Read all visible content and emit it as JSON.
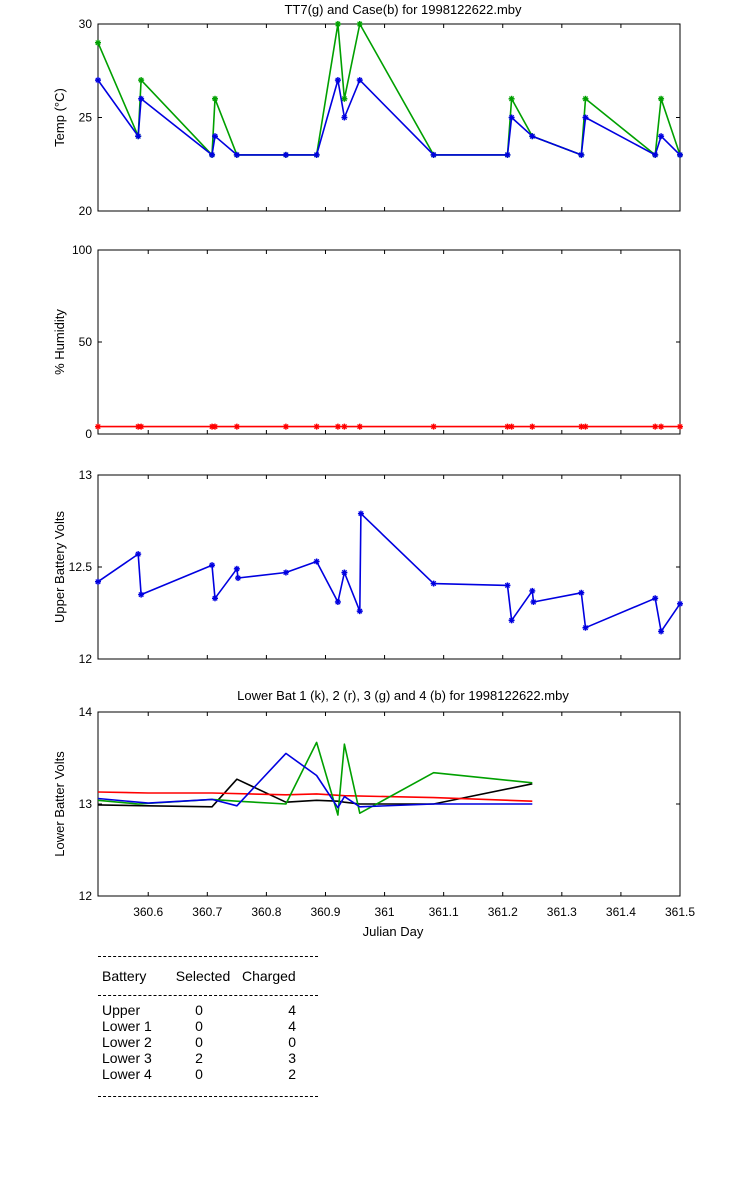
{
  "chart_data": [
    {
      "type": "line",
      "title": "TT7(g) and Case(b) for 1998122622.mby",
      "xlabel": "",
      "ylabel": "Temp (°C)",
      "xlim": [
        360.515,
        361.5
      ],
      "ylim": [
        20,
        30
      ],
      "yticks": [
        "20",
        "25",
        "30"
      ],
      "series": [
        {
          "name": "TT7",
          "color": "#00a000",
          "x": [
            360.515,
            360.583,
            360.588,
            360.708,
            360.713,
            360.75,
            360.833,
            360.885,
            360.921,
            360.932,
            360.958,
            361.083,
            361.208,
            361.215,
            361.25,
            361.333,
            361.34,
            361.458,
            361.468,
            361.5
          ],
          "y": [
            29,
            24,
            27,
            23,
            26,
            23,
            23,
            23,
            30,
            26,
            30,
            23,
            23,
            26,
            24,
            23,
            26,
            23,
            26,
            23
          ]
        },
        {
          "name": "Case",
          "color": "#0000e0",
          "x": [
            360.515,
            360.583,
            360.588,
            360.708,
            360.713,
            360.75,
            360.833,
            360.885,
            360.921,
            360.932,
            360.958,
            361.083,
            361.208,
            361.215,
            361.25,
            361.333,
            361.34,
            361.458,
            361.468,
            361.5
          ],
          "y": [
            27,
            24,
            26,
            23,
            24,
            23,
            23,
            23,
            27,
            25,
            27,
            23,
            23,
            25,
            24,
            23,
            25,
            23,
            24,
            23
          ]
        }
      ]
    },
    {
      "type": "line",
      "title": "",
      "xlabel": "",
      "ylabel": "% Humidity",
      "xlim": [
        360.515,
        361.5
      ],
      "ylim": [
        0,
        100
      ],
      "yticks": [
        "0",
        "50",
        "100"
      ],
      "series": [
        {
          "name": "Humidity",
          "color": "#ff0000",
          "x": [
            360.515,
            360.583,
            360.588,
            360.708,
            360.713,
            360.75,
            360.833,
            360.885,
            360.921,
            360.932,
            360.958,
            361.083,
            361.208,
            361.215,
            361.25,
            361.333,
            361.34,
            361.458,
            361.468,
            361.5
          ],
          "y": [
            4,
            4,
            4,
            4,
            4,
            4,
            4,
            4,
            4,
            4,
            4,
            4,
            4,
            4,
            4,
            4,
            4,
            4,
            4,
            4
          ]
        }
      ]
    },
    {
      "type": "line",
      "title": "",
      "xlabel": "",
      "ylabel": "Upper Battery Volts",
      "xlim": [
        360.515,
        361.5
      ],
      "ylim": [
        12,
        13
      ],
      "yticks": [
        "12",
        "12.5",
        "13"
      ],
      "series": [
        {
          "name": "Upper",
          "color": "#0000e0",
          "x": [
            360.515,
            360.583,
            360.588,
            360.708,
            360.713,
            360.75,
            360.752,
            360.833,
            360.885,
            360.921,
            360.932,
            360.958,
            360.96,
            361.083,
            361.208,
            361.215,
            361.25,
            361.252,
            361.333,
            361.34,
            361.458,
            361.468,
            361.5
          ],
          "y": [
            12.42,
            12.57,
            12.35,
            12.51,
            12.33,
            12.49,
            12.44,
            12.47,
            12.53,
            12.31,
            12.47,
            12.26,
            12.79,
            12.41,
            12.4,
            12.21,
            12.37,
            12.31,
            12.36,
            12.17,
            12.33,
            12.15,
            12.3
          ]
        }
      ]
    },
    {
      "type": "line",
      "title": "Lower Bat 1 (k), 2 (r), 3 (g) and 4 (b) for 1998122622.mby",
      "xlabel": "Julian Day",
      "ylabel": "Lower Batter Volts",
      "xlim": [
        360.515,
        361.5
      ],
      "ylim": [
        12,
        14
      ],
      "yticks": [
        "12",
        "13",
        "14"
      ],
      "xticks": [
        360.6,
        360.7,
        360.8,
        360.9,
        361.0,
        361.1,
        361.2,
        361.3,
        361.4,
        361.5
      ],
      "xticklabels": [
        "360.6",
        "360.7",
        "360.8",
        "360.9",
        "361",
        "361.1",
        "361.2",
        "361.3",
        "361.4",
        "361.5"
      ],
      "series": [
        {
          "name": "Lower 1",
          "color": "#000000",
          "x": [
            360.515,
            360.6,
            360.708,
            360.75,
            360.833,
            360.885,
            360.921,
            360.932,
            360.958,
            361.083,
            361.25
          ],
          "y": [
            12.99,
            12.98,
            12.97,
            13.27,
            13.02,
            13.04,
            13.03,
            13.02,
            13.0,
            13.0,
            13.22
          ]
        },
        {
          "name": "Lower 2",
          "color": "#ff0000",
          "x": [
            360.515,
            360.6,
            360.708,
            360.833,
            360.885,
            360.932,
            361.083,
            361.25
          ],
          "y": [
            13.13,
            13.12,
            13.12,
            13.1,
            13.11,
            13.09,
            13.07,
            13.03
          ]
        },
        {
          "name": "Lower 3",
          "color": "#00a000",
          "x": [
            360.515,
            360.583,
            360.708,
            360.75,
            360.833,
            360.885,
            360.921,
            360.932,
            360.958,
            361.083,
            361.25
          ],
          "y": [
            13.04,
            13.0,
            13.05,
            13.03,
            13.0,
            13.67,
            12.88,
            13.65,
            12.9,
            13.34,
            13.23
          ]
        },
        {
          "name": "Lower 4",
          "color": "#0000e0",
          "x": [
            360.515,
            360.6,
            360.708,
            360.75,
            360.833,
            360.885,
            360.921,
            360.932,
            360.958,
            361.083,
            361.25
          ],
          "y": [
            13.06,
            13.01,
            13.05,
            12.98,
            13.55,
            13.31,
            12.96,
            13.08,
            12.97,
            13.0,
            13.0
          ]
        }
      ]
    }
  ],
  "table": {
    "headers": [
      "Battery",
      "Selected",
      "Charged"
    ],
    "rows": [
      {
        "battery": "Upper",
        "selected": "0",
        "charged": "4"
      },
      {
        "battery": "Lower 1",
        "selected": "0",
        "charged": "4"
      },
      {
        "battery": "Lower 2",
        "selected": "0",
        "charged": "0"
      },
      {
        "battery": "Lower 3",
        "selected": "2",
        "charged": "3"
      },
      {
        "battery": "Lower 4",
        "selected": "0",
        "charged": "2"
      }
    ]
  }
}
